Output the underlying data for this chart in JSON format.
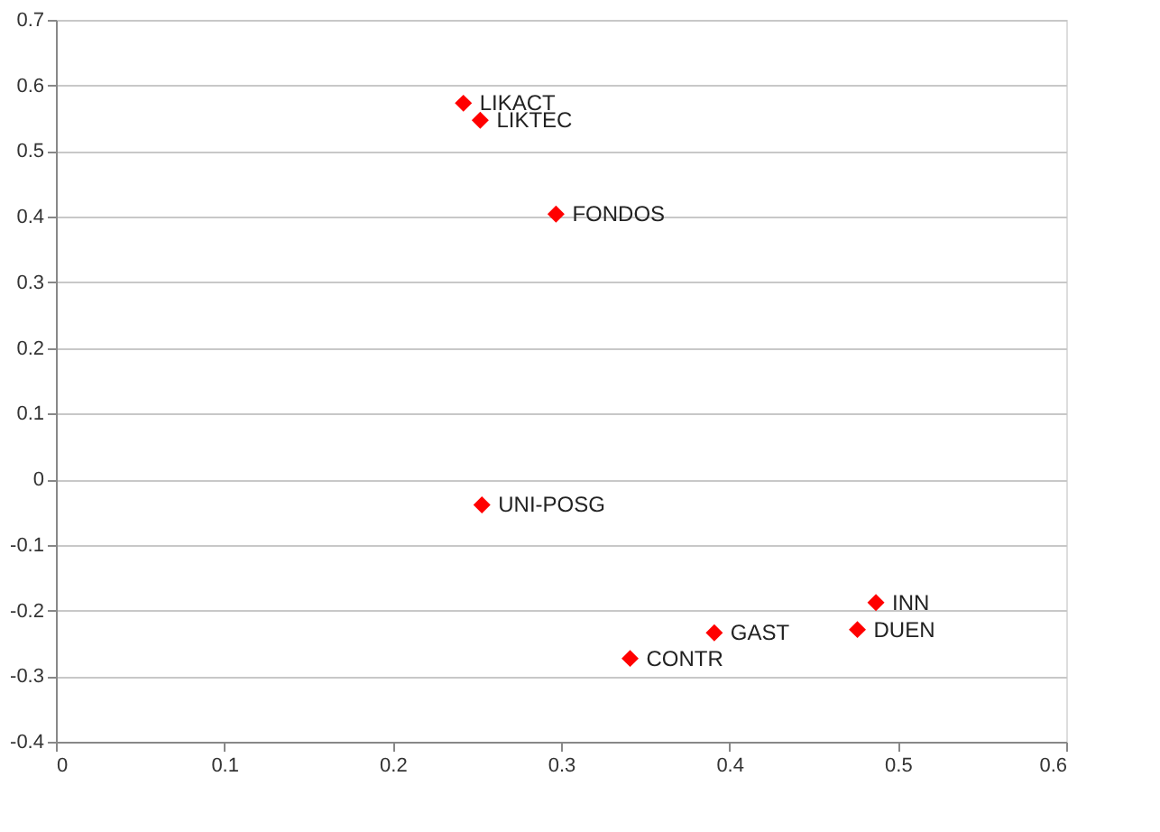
{
  "chart_data": {
    "type": "scatter",
    "marker": "diamond",
    "grid": "y",
    "data_labels": false,
    "xlim": [
      0,
      0.6
    ],
    "xticks": [
      0,
      0.1,
      0.2,
      0.3,
      0.4,
      0.5,
      0.6
    ],
    "ylim": [
      -0.4,
      0.7
    ],
    "yticks": [
      -0.4,
      -0.3,
      -0.2,
      -0.1,
      0,
      0.1,
      0.2,
      0.3,
      0.4,
      0.5,
      0.6,
      0.7
    ],
    "series": [
      {
        "color": "#ff0000",
        "x": [
          0.242,
          0.252,
          0.297,
          0.253,
          0.487,
          0.391,
          0.476,
          0.341
        ],
        "values": [
          0.573,
          0.547,
          0.404,
          -0.039,
          -0.188,
          -0.234,
          -0.229,
          -0.273
        ],
        "value_labels": [
          "LIKACT",
          "LIKTEC",
          "FONDOS",
          "UNI-POSG",
          "INN",
          "GAST",
          "DUEN",
          "CONTR"
        ]
      }
    ]
  }
}
